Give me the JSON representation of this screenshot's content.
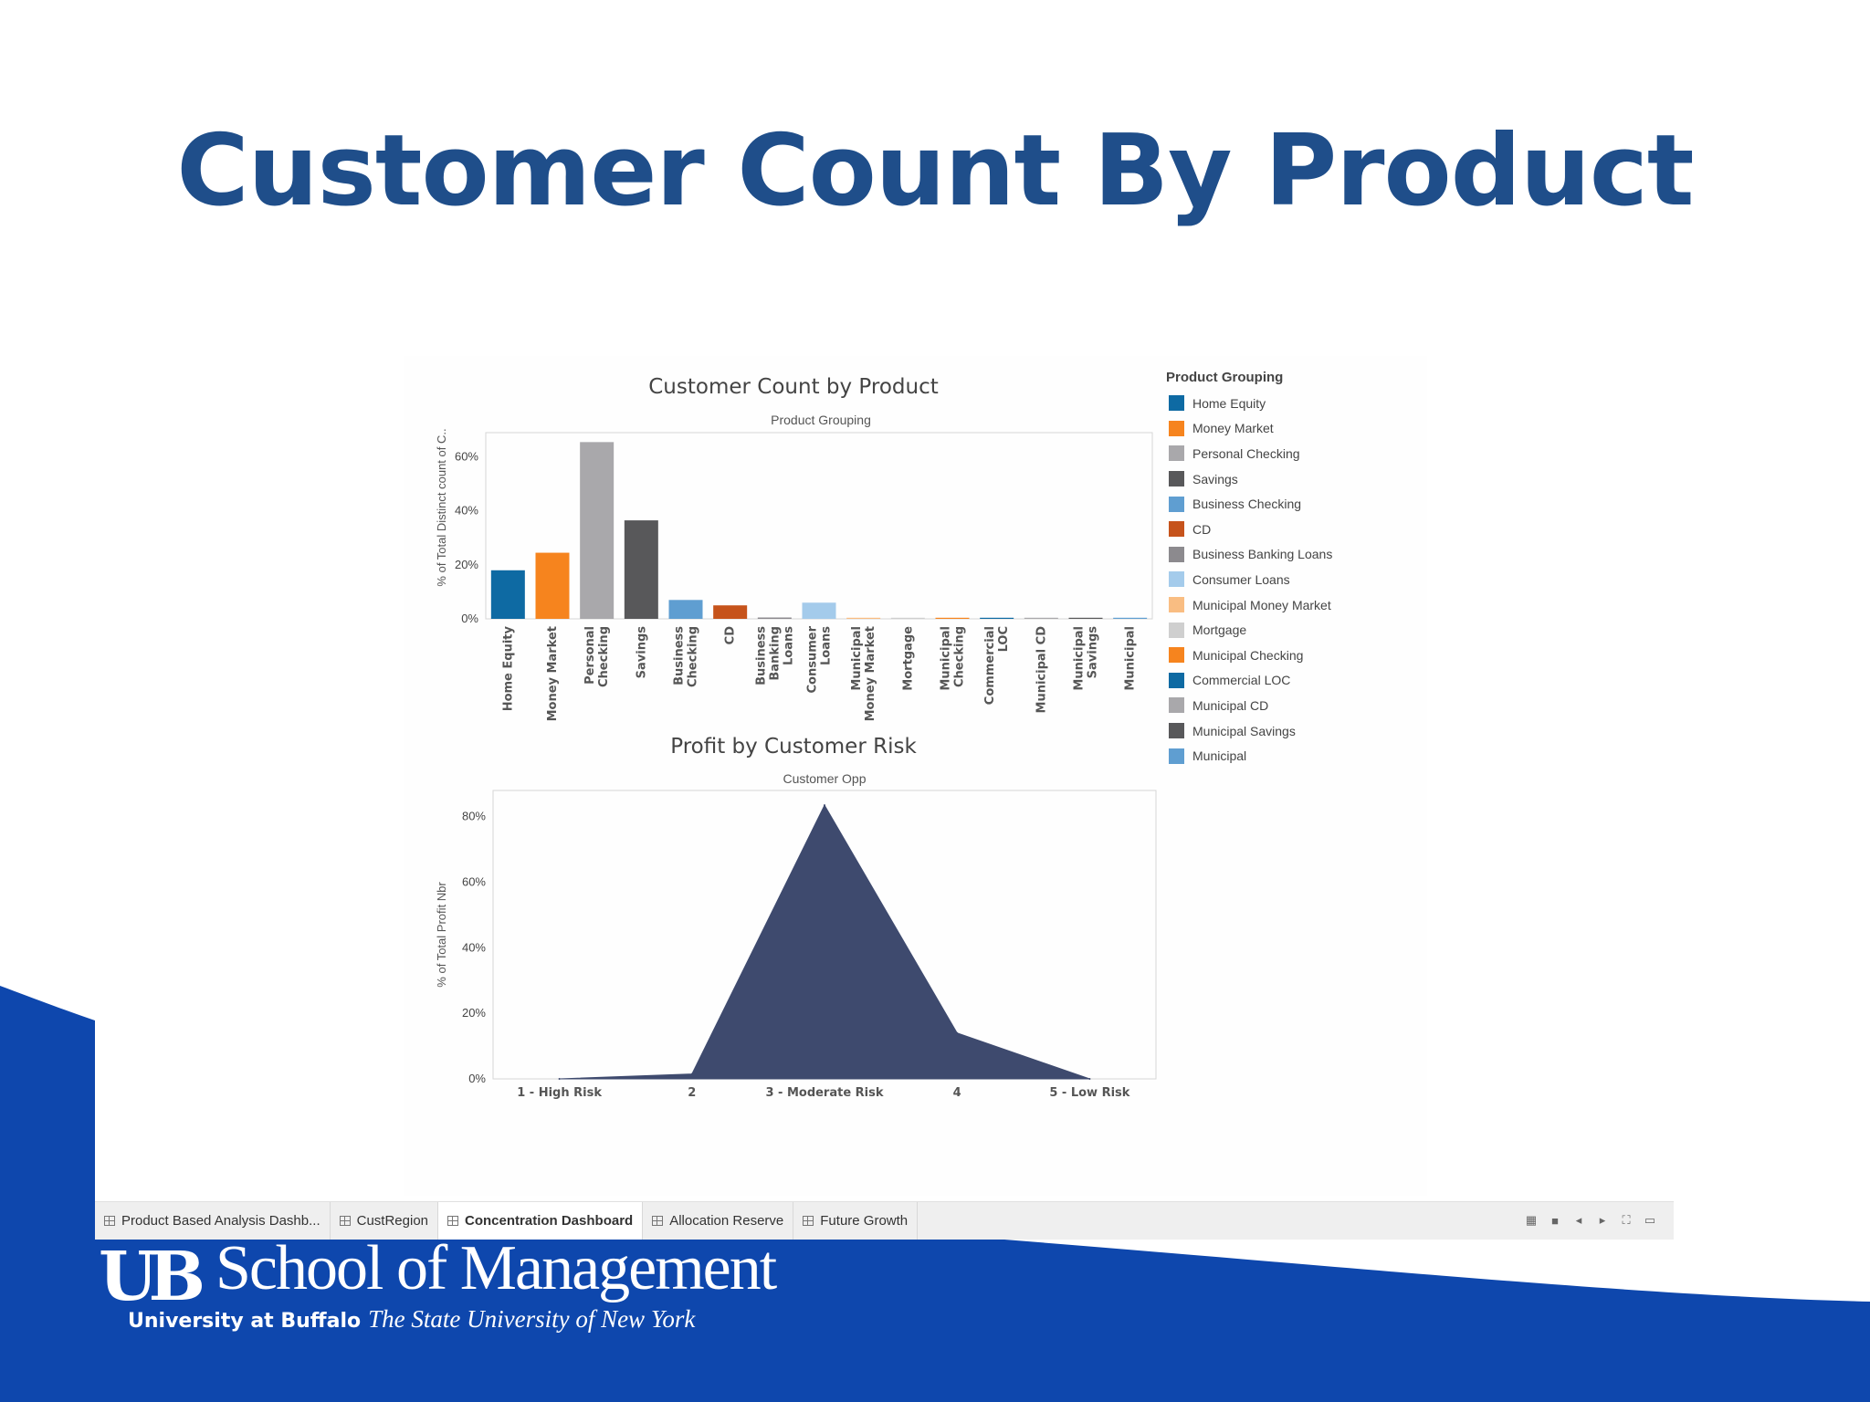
{
  "slide": {
    "title": "Customer Count By Product"
  },
  "colors": {
    "title": "#1f4e8a",
    "footer_blue": "#0e47ad"
  },
  "chart_data": [
    {
      "type": "bar",
      "title": "Customer Count by Product",
      "subtitle": "Product Grouping",
      "ylabel": "% of Total Distinct count of C..",
      "ylim": [
        0,
        0.69
      ],
      "yticks": [
        "0%",
        "20%",
        "40%",
        "60%"
      ],
      "ytick_values": [
        0,
        0.2,
        0.4,
        0.6
      ],
      "categories": [
        "Home Equity",
        "Money Market",
        "Personal Checking",
        "Savings",
        "Business Checking",
        "CD",
        "Business Banking Loans",
        "Consumer Loans",
        "Municipal Money Market",
        "Mortgage",
        "Municipal Checking",
        "Commercial LOC",
        "Municipal CD",
        "Municipal Savings",
        "Municipal"
      ],
      "category_label_lines": [
        [
          "Home Equity"
        ],
        [
          "Money Market"
        ],
        [
          "Personal",
          "Checking"
        ],
        [
          "Savings"
        ],
        [
          "Business",
          "Checking"
        ],
        [
          "CD"
        ],
        [
          "Business",
          "Banking",
          "Loans"
        ],
        [
          "Consumer",
          "Loans"
        ],
        [
          "Municipal",
          "Money Market"
        ],
        [
          "Mortgage"
        ],
        [
          "Municipal",
          "Checking"
        ],
        [
          "Commercial",
          "LOC"
        ],
        [
          "Municipal CD"
        ],
        [
          "Municipal",
          "Savings"
        ],
        [
          "Municipal"
        ]
      ],
      "values": [
        0.18,
        0.245,
        0.655,
        0.365,
        0.07,
        0.05,
        0.005,
        0.06,
        0.001,
        0.003,
        0.001,
        0.001,
        0.001,
        0.001,
        0.001
      ],
      "colors": [
        "#0e6aa3",
        "#f6841e",
        "#a9a8ab",
        "#58585a",
        "#5f9ed1",
        "#c6531b",
        "#8c8a8e",
        "#a4cbeb",
        "#f9bd82",
        "#cfcfcf",
        "#f6841e",
        "#0e6aa3",
        "#a9a8ab",
        "#58585a",
        "#5f9ed1"
      ],
      "grid": false
    },
    {
      "type": "area",
      "title": "Profit by Customer Risk",
      "subtitle": "Customer Opp",
      "ylabel": "% of Total Profit Nbr",
      "ylim": [
        0,
        0.88
      ],
      "yticks": [
        "0%",
        "20%",
        "40%",
        "60%",
        "80%"
      ],
      "ytick_values": [
        0,
        0.2,
        0.4,
        0.6,
        0.8
      ],
      "categories": [
        "1  - High Risk",
        "2",
        "3 - Moderate Risk",
        "4",
        "5  - Low Risk"
      ],
      "values": [
        0.0,
        0.015,
        0.835,
        0.14,
        0.0
      ],
      "color": "#3e4a6e",
      "grid": false
    }
  ],
  "legend": {
    "title": "Product Grouping",
    "items": [
      {
        "label": "Home Equity",
        "color": "#0e6aa3"
      },
      {
        "label": "Money Market",
        "color": "#f6841e"
      },
      {
        "label": "Personal Checking",
        "color": "#a9a8ab"
      },
      {
        "label": "Savings",
        "color": "#58585a"
      },
      {
        "label": "Business Checking",
        "color": "#5f9ed1"
      },
      {
        "label": "CD",
        "color": "#c6531b"
      },
      {
        "label": "Business Banking Loans",
        "color": "#8c8a8e"
      },
      {
        "label": "Consumer Loans",
        "color": "#a4cbeb"
      },
      {
        "label": "Municipal Money Market",
        "color": "#f9bd82"
      },
      {
        "label": "Mortgage",
        "color": "#cfcfcf"
      },
      {
        "label": "Municipal Checking",
        "color": "#f6841e"
      },
      {
        "label": "Commercial LOC",
        "color": "#0e6aa3"
      },
      {
        "label": "Municipal CD",
        "color": "#a9a8ab"
      },
      {
        "label": "Municipal Savings",
        "color": "#58585a"
      },
      {
        "label": "Municipal",
        "color": "#5f9ed1"
      }
    ]
  },
  "tabs": [
    {
      "label": "Product Based Analysis Dashb..."
    },
    {
      "label": "CustRegion"
    },
    {
      "label": "Concentration Dashboard",
      "active": true
    },
    {
      "label": "Allocation Reserve"
    },
    {
      "label": "Future Growth"
    }
  ],
  "tab_controls": [
    "grid-view-icon",
    "filmstrip-icon",
    "previous-icon",
    "next-icon",
    "fullscreen-icon",
    "presentation-icon"
  ],
  "footer": {
    "mark": "UB",
    "school": "School of Management",
    "university_bold": "University at Buffalo",
    "university_italic": "The State University of New York"
  }
}
